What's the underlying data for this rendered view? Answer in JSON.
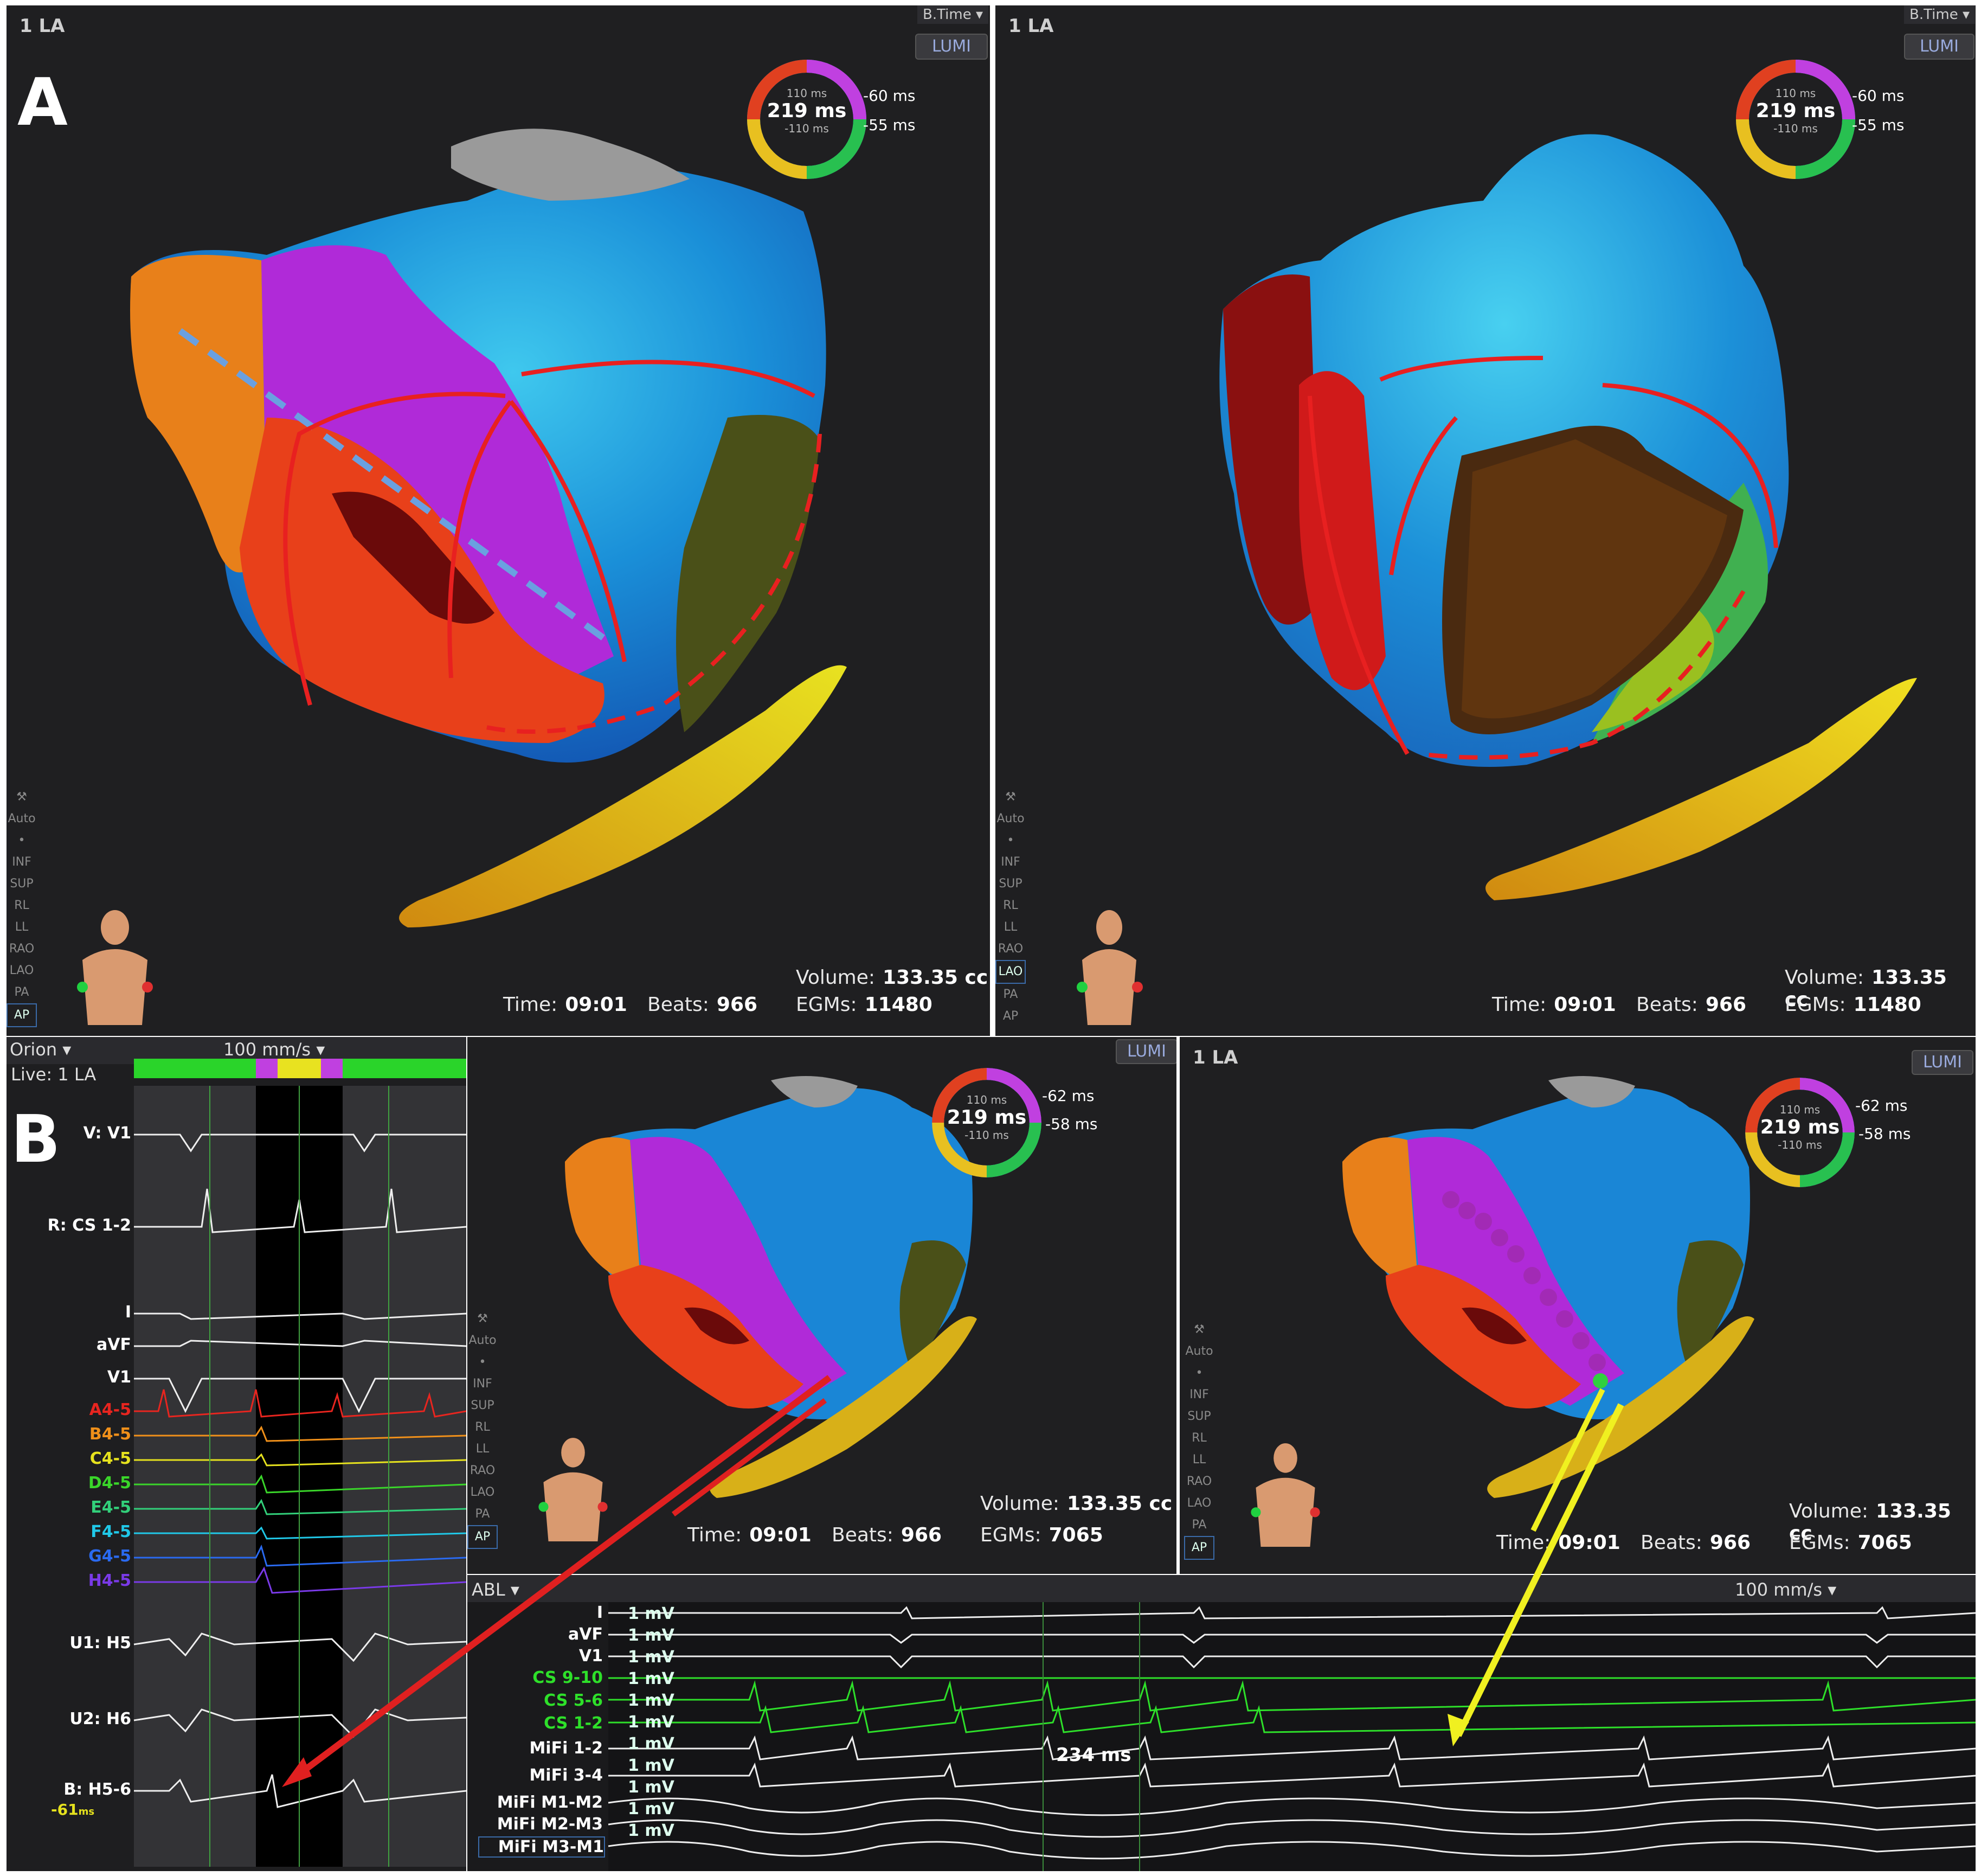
{
  "panel_a": {
    "letter": "A",
    "left_view": {
      "title": "1 LA",
      "btime": "B.Time",
      "ring": {
        "top": "110 ms",
        "center": "219 ms",
        "bottom": "-110 ms",
        "right_top": "-60 ms",
        "right_bottom": "-55 ms"
      },
      "stats": {
        "volume_label": "Volume:",
        "volume": "133.35 cc",
        "egms_label": "EGMs:",
        "egms": "11480",
        "time_label": "Time:",
        "time": "09:01",
        "beats_label": "Beats:",
        "beats": "966"
      },
      "selected_view": "AP"
    },
    "right_view": {
      "title": "1 LA",
      "btime": "B.Time",
      "ring": {
        "top": "110 ms",
        "center": "219 ms",
        "bottom": "-110 ms",
        "right_top": "-60 ms",
        "right_bottom": "-55 ms"
      },
      "stats": {
        "volume_label": "Volume:",
        "volume": "133.35 cc",
        "egms_label": "EGMs:",
        "egms": "11480",
        "time_label": "Time:",
        "time": "09:01",
        "beats_label": "Beats:",
        "beats": "966"
      },
      "selected_view": "LAO"
    }
  },
  "view_tools": [
    "Auto",
    "•",
    "INF",
    "SUP",
    "RL",
    "LL",
    "RAO",
    "LAO",
    "PA",
    "AP"
  ],
  "panel_b": {
    "letter": "B",
    "toolbar": {
      "source": "Orion",
      "live": "Live: 1 LA",
      "speed": "100 mm/s"
    },
    "signals_top": [
      {
        "label": "V: V1",
        "color": "#ffffff"
      },
      {
        "label": "R: CS 1-2",
        "color": "#ffffff"
      }
    ],
    "signals_mid": [
      {
        "label": "I",
        "color": "#ffffff"
      },
      {
        "label": "aVF",
        "color": "#ffffff"
      },
      {
        "label": "V1",
        "color": "#ffffff"
      },
      {
        "label": "A4-5",
        "color": "#e8251f"
      },
      {
        "label": "B4-5",
        "color": "#f0901a"
      },
      {
        "label": "C4-5",
        "color": "#e6e21e"
      },
      {
        "label": "D4-5",
        "color": "#3ad62a"
      },
      {
        "label": "E4-5",
        "color": "#32d07a"
      },
      {
        "label": "F4-5",
        "color": "#20c8e8"
      },
      {
        "label": "G4-5",
        "color": "#2a6af0"
      },
      {
        "label": "H4-5",
        "color": "#7a3ae8"
      }
    ],
    "signals_bottom": [
      {
        "label": "U1: H5",
        "color": "#ffffff"
      },
      {
        "label": "U2: H6",
        "color": "#ffffff"
      },
      {
        "label": "B: H5-6",
        "color": "#ffffff"
      }
    ],
    "bottom_value": "-61",
    "bottom_value_unit": "ms",
    "map_left": {
      "ring": {
        "top": "110 ms",
        "center": "219 ms",
        "bottom": "-110 ms",
        "right_top": "-62 ms",
        "right_bottom": "-58 ms"
      },
      "stats": {
        "volume_label": "Volume:",
        "volume": "133.35 cc",
        "egms_label": "EGMs:",
        "egms": "7065",
        "time_label": "Time:",
        "time": "09:01",
        "beats_label": "Beats:",
        "beats": "966"
      }
    },
    "map_right": {
      "title": "1 LA",
      "ring": {
        "top": "110 ms",
        "center": "219 ms",
        "bottom": "-110 ms",
        "right_top": "-62 ms",
        "right_bottom": "-58 ms"
      },
      "stats": {
        "volume_label": "Volume:",
        "volume": "133.35 cc",
        "egms_label": "EGMs:",
        "egms": "7065",
        "time_label": "Time:",
        "time": "09:01",
        "beats_label": "Beats:",
        "beats": "966"
      }
    },
    "abl_panel": {
      "source": "ABL",
      "speed": "100 mm/s",
      "interval": "234 ms",
      "scale": "1 mV",
      "channels": [
        {
          "label": "I",
          "color": "#ffffff"
        },
        {
          "label": "aVF",
          "color": "#ffffff"
        },
        {
          "label": "V1",
          "color": "#ffffff"
        },
        {
          "label": "CS 9-10",
          "color": "#2ee02a"
        },
        {
          "label": "CS 5-6",
          "color": "#2ee02a"
        },
        {
          "label": "CS 1-2",
          "color": "#2ee02a"
        },
        {
          "label": "MiFi 1-2",
          "color": "#ffffff"
        },
        {
          "label": "MiFi 3-4",
          "color": "#ffffff"
        },
        {
          "label": "MiFi M1-M2",
          "color": "#ffffff"
        },
        {
          "label": "MiFi M2-M3",
          "color": "#ffffff"
        },
        {
          "label": "MiFi M3-M1",
          "color": "#ffffff"
        }
      ]
    }
  }
}
